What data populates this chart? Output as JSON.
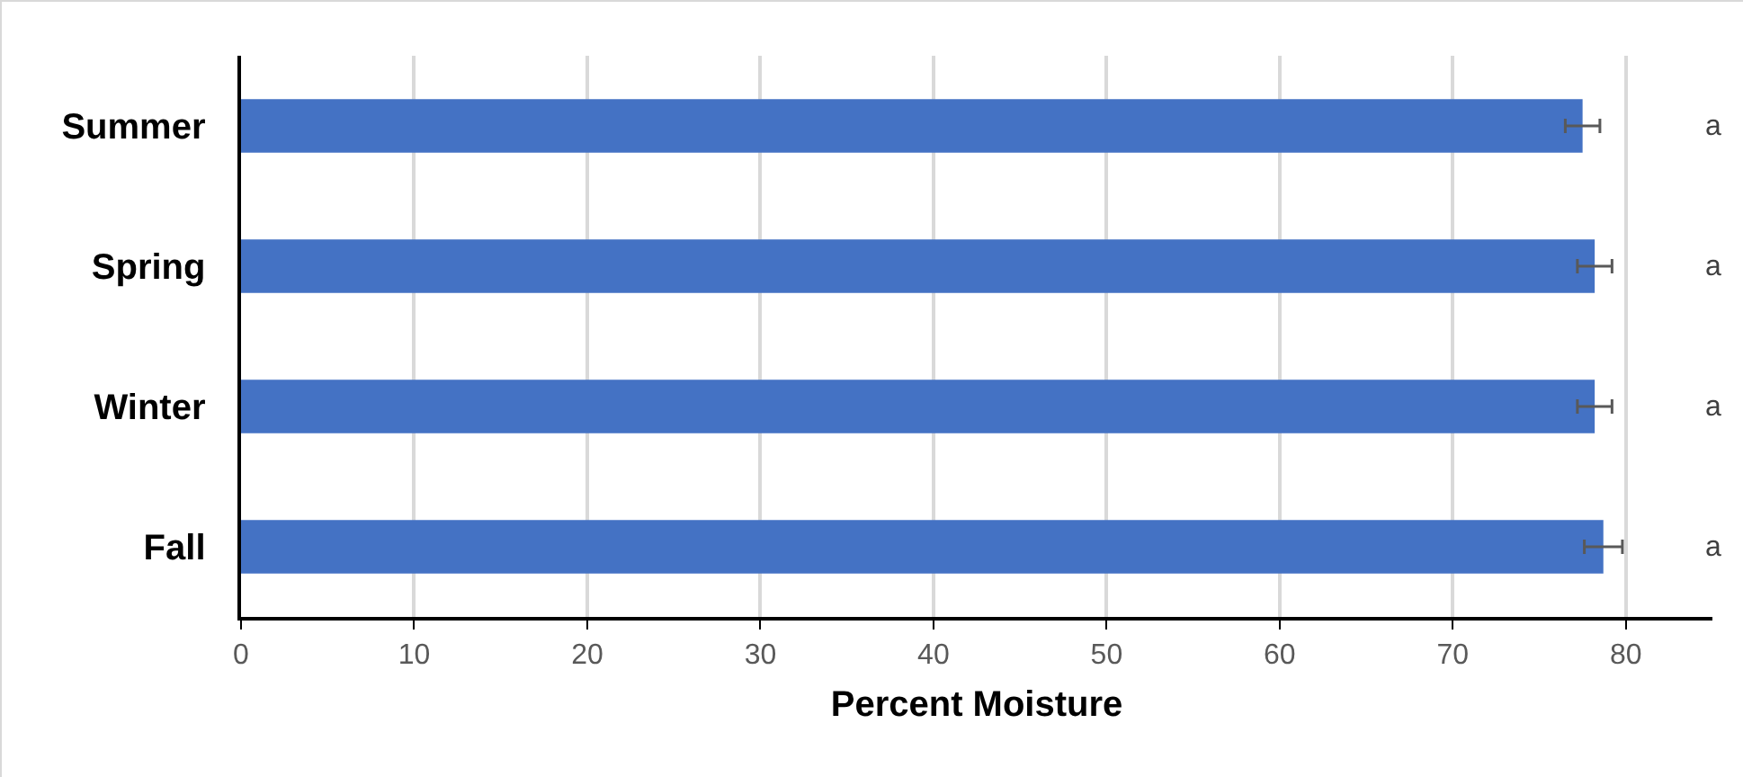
{
  "chart_data": {
    "type": "bar",
    "orientation": "horizontal",
    "xlabel": "Percent Moisture",
    "categories": [
      "Summer",
      "Spring",
      "Winter",
      "Fall"
    ],
    "values": [
      77.5,
      78.2,
      78.2,
      78.7
    ],
    "errors": [
      1.0,
      1.0,
      1.0,
      1.1
    ],
    "color": "#4472c4",
    "xlim": [
      0,
      85
    ],
    "xticks": [
      0,
      10,
      20,
      30,
      40,
      50,
      60,
      70,
      80
    ],
    "grid": "x",
    "annotations": [
      "a",
      "a",
      "a",
      "a"
    ]
  }
}
